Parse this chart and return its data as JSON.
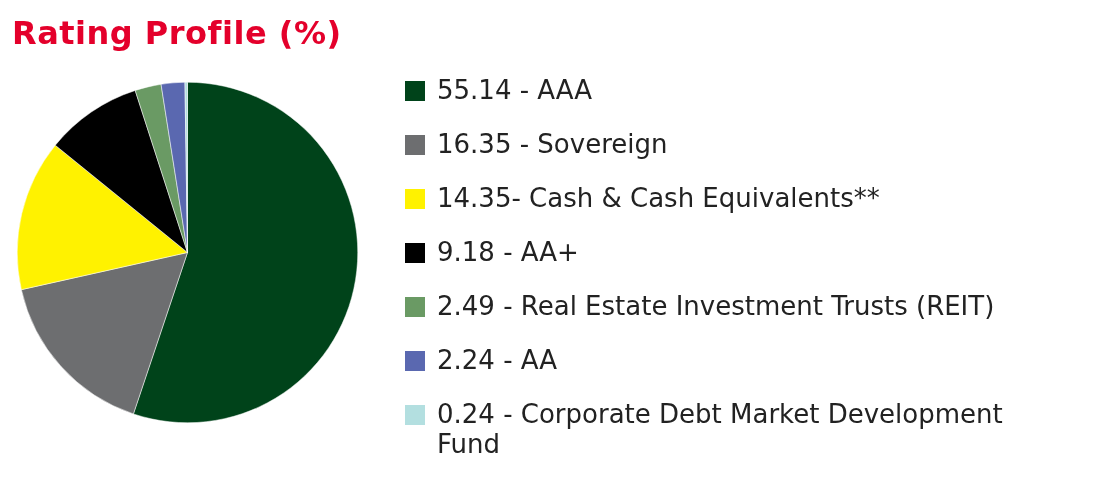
{
  "chart_data": {
    "type": "pie",
    "title": "Rating Profile (%)",
    "categories": [
      "55.14 - AAA",
      "16.35 - Sovereign",
      "14.35- Cash & Cash Equivalents**",
      "9.18 - AA+",
      "2.49 - Real Estate Investment Trusts (REIT)",
      "2.24 - AA",
      "0.24 - Corporate Debt Market Development Fund"
    ],
    "values": [
      55.14,
      16.35,
      14.35,
      9.18,
      2.49,
      2.24,
      0.24
    ],
    "colors": [
      "#00431a",
      "#6d6e70",
      "#fff200",
      "#000000",
      "#6a9a64",
      "#5a68b0",
      "#b3dfe0"
    ],
    "legend": "right"
  }
}
